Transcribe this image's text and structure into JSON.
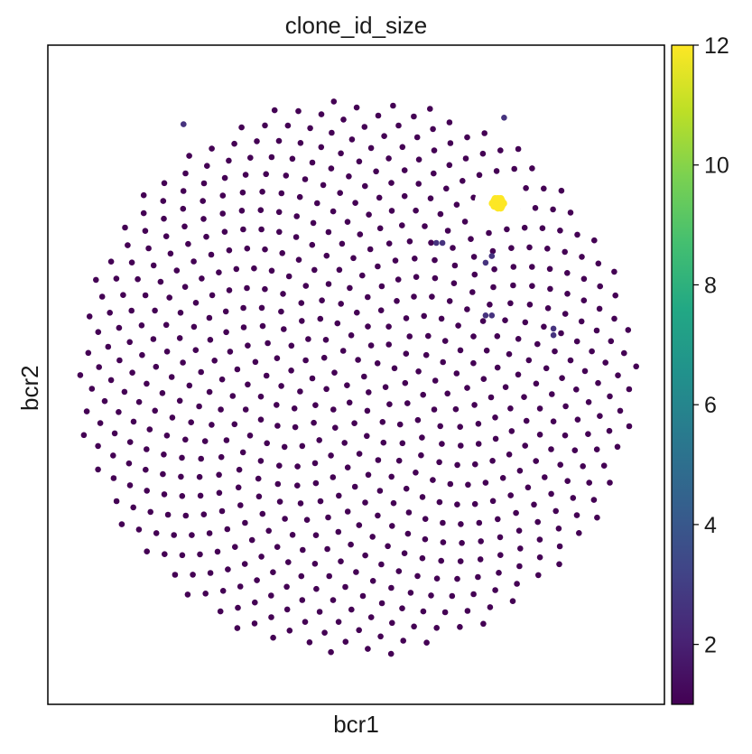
{
  "chart_data": {
    "type": "scatter",
    "title": "clone_id_size",
    "xlabel": "bcr1",
    "ylabel": "bcr2",
    "grid": false,
    "axis_ticks_shown": false,
    "colormap": "viridis",
    "colorbar": {
      "range": [
        1,
        12
      ],
      "ticks": [
        2,
        4,
        6,
        8,
        10,
        12
      ],
      "tick_labels": [
        "2",
        "4",
        "6",
        "8",
        "10",
        "12"
      ],
      "position": "right"
    },
    "layout_description": "Phyllotaxis disc of ~700 single-cell points; nearly all have clone_id_size = 1 (dark purple).",
    "n_background_points": 700,
    "background_value": 1,
    "highlight_points": [
      {
        "x": 0.73,
        "y": 0.76,
        "value": 12
      },
      {
        "x": 0.22,
        "y": 0.88,
        "value": 2
      },
      {
        "x": 0.74,
        "y": 0.89,
        "value": 2
      },
      {
        "x": 0.63,
        "y": 0.7,
        "value": 2
      },
      {
        "x": 0.64,
        "y": 0.7,
        "value": 2
      },
      {
        "x": 0.71,
        "y": 0.67,
        "value": 2
      },
      {
        "x": 0.72,
        "y": 0.68,
        "value": 2
      },
      {
        "x": 0.71,
        "y": 0.59,
        "value": 2
      },
      {
        "x": 0.72,
        "y": 0.59,
        "value": 2
      },
      {
        "x": 0.82,
        "y": 0.57,
        "value": 2
      },
      {
        "x": 0.82,
        "y": 0.56,
        "value": 2
      }
    ],
    "colors": {
      "low": "#440154",
      "value_2": "#46337e",
      "high": "#fde725"
    }
  }
}
